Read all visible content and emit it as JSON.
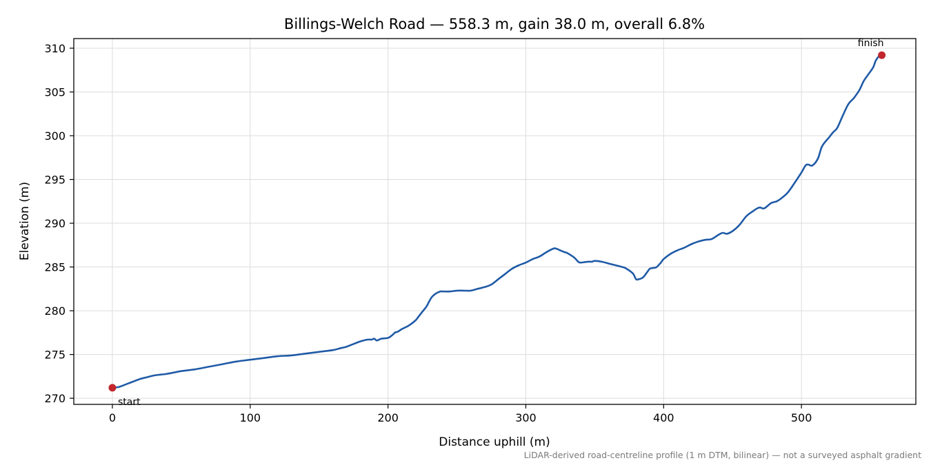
{
  "chart_data": {
    "type": "line",
    "title": "Billings-Welch Road — 558.3 m, gain 38.0 m, overall 6.8%",
    "xlabel": "Distance uphill (m)",
    "ylabel": "Elevation (m)",
    "xlim": [
      -28,
      583
    ],
    "ylim": [
      269.3,
      311.1
    ],
    "xticks": [
      0,
      100,
      200,
      300,
      400,
      500
    ],
    "yticks": [
      270,
      275,
      280,
      285,
      290,
      295,
      300,
      305,
      310
    ],
    "grid": true,
    "line_color": "#1f5aa6",
    "marker_color": "#c1272d",
    "series": [
      {
        "x": [
          0,
          5,
          10,
          15,
          20,
          25,
          30,
          35,
          40,
          50,
          60,
          70,
          80,
          90,
          100,
          110,
          120,
          130,
          140,
          150,
          160,
          165,
          170,
          175,
          180,
          185,
          188,
          190,
          192,
          195,
          200,
          203,
          205,
          207,
          210,
          215,
          220,
          222,
          225,
          228,
          230,
          232,
          235,
          238,
          240,
          245,
          250,
          255,
          260,
          265,
          270,
          275,
          280,
          285,
          290,
          295,
          300,
          305,
          310,
          315,
          320,
          322,
          325,
          328,
          330,
          335,
          338,
          340,
          345,
          348,
          350,
          355,
          360,
          365,
          370,
          372,
          375,
          378,
          380,
          382,
          385,
          388,
          390,
          393,
          395,
          398,
          400,
          405,
          410,
          415,
          420,
          425,
          430,
          435,
          440,
          443,
          446,
          450,
          455,
          460,
          465,
          468,
          470,
          473,
          478,
          482,
          485,
          490,
          495,
          500,
          503,
          505,
          508,
          512,
          515,
          520,
          523,
          526,
          530,
          534,
          538,
          542,
          545,
          548,
          552,
          554,
          557,
          558.3
        ],
        "y": [
          271.2,
          271.3,
          271.6,
          271.9,
          272.2,
          272.4,
          272.6,
          272.7,
          272.8,
          273.1,
          273.3,
          273.6,
          273.9,
          274.2,
          274.4,
          274.6,
          274.8,
          274.9,
          275.1,
          275.3,
          275.5,
          275.7,
          275.9,
          276.2,
          276.5,
          276.7,
          276.7,
          276.8,
          276.6,
          276.8,
          276.9,
          277.2,
          277.5,
          277.6,
          277.9,
          278.3,
          278.9,
          279.3,
          279.9,
          280.5,
          281.1,
          281.6,
          282.0,
          282.2,
          282.2,
          282.2,
          282.3,
          282.3,
          282.3,
          282.5,
          282.7,
          283.0,
          283.6,
          284.2,
          284.8,
          285.2,
          285.5,
          285.9,
          286.2,
          286.7,
          287.1,
          287.1,
          286.9,
          286.7,
          286.6,
          286.1,
          285.6,
          285.5,
          285.6,
          285.6,
          285.7,
          285.6,
          285.4,
          285.2,
          285.0,
          284.9,
          284.6,
          284.2,
          283.6,
          283.6,
          283.8,
          284.4,
          284.8,
          284.9,
          285.0,
          285.5,
          285.9,
          286.5,
          286.9,
          287.2,
          287.6,
          287.9,
          288.1,
          288.2,
          288.7,
          288.9,
          288.8,
          289.1,
          289.8,
          290.8,
          291.4,
          291.7,
          291.8,
          291.7,
          292.3,
          292.5,
          292.8,
          293.5,
          294.6,
          295.8,
          296.6,
          296.7,
          296.6,
          297.4,
          298.8,
          299.8,
          300.4,
          300.9,
          302.3,
          303.6,
          304.3,
          305.2,
          306.2,
          306.9,
          307.8,
          308.6,
          309.2,
          309.2
        ]
      }
    ],
    "annotations": [
      {
        "text": "start",
        "x": 0,
        "y": 271.2
      },
      {
        "text": "finish",
        "x": 558.3,
        "y": 309.2
      }
    ],
    "footnote": "LiDAR-derived road-centreline profile (1 m DTM, bilinear) — not a surveyed asphalt gradient"
  }
}
